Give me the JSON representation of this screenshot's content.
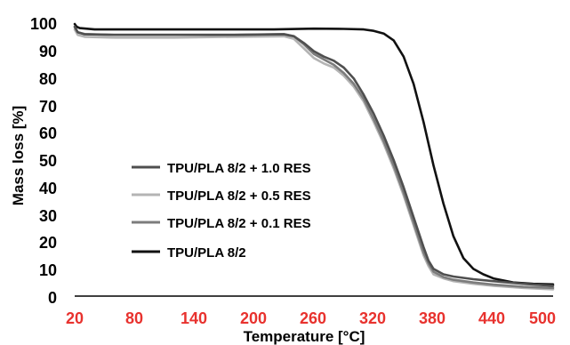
{
  "chart_data": {
    "type": "line",
    "xlabel": "Temperature [°C]",
    "ylabel": "Mass loss [%]",
    "xlim": [
      20,
      500
    ],
    "ylim": [
      0,
      100
    ],
    "x_ticks": [
      "20",
      "80",
      "140",
      "200",
      "260",
      "320",
      "380",
      "440",
      "500"
    ],
    "y_ticks": [
      "0",
      "10",
      "20",
      "30",
      "40",
      "50",
      "60",
      "70",
      "80",
      "90",
      "100"
    ],
    "x_tick_color": "#e8322e",
    "grid": false,
    "legend_position": "lower-left",
    "series": [
      {
        "name": "TPU/PLA 8/2 + 1.0 RES",
        "color": "#4f4f4f",
        "points": [
          [
            20,
            99
          ],
          [
            23,
            97
          ],
          [
            30,
            96.2
          ],
          [
            60,
            96
          ],
          [
            120,
            96
          ],
          [
            180,
            96
          ],
          [
            230,
            96.2
          ],
          [
            240,
            95.5
          ],
          [
            250,
            93
          ],
          [
            260,
            90
          ],
          [
            270,
            88
          ],
          [
            280,
            86.5
          ],
          [
            290,
            84
          ],
          [
            300,
            80
          ],
          [
            310,
            74
          ],
          [
            320,
            67
          ],
          [
            330,
            59
          ],
          [
            340,
            50
          ],
          [
            350,
            40
          ],
          [
            360,
            29
          ],
          [
            370,
            18
          ],
          [
            375,
            13
          ],
          [
            380,
            10
          ],
          [
            390,
            8
          ],
          [
            400,
            7.2
          ],
          [
            420,
            6.2
          ],
          [
            440,
            5.5
          ],
          [
            470,
            4.5
          ],
          [
            500,
            3.8
          ]
        ]
      },
      {
        "name": "TPU/PLA 8/2 + 0.5 RES",
        "color": "#b4b4b4",
        "points": [
          [
            20,
            98
          ],
          [
            23,
            96
          ],
          [
            30,
            95.3
          ],
          [
            60,
            95
          ],
          [
            120,
            95
          ],
          [
            180,
            95.3
          ],
          [
            230,
            95.5
          ],
          [
            240,
            94.5
          ],
          [
            250,
            91
          ],
          [
            260,
            87.5
          ],
          [
            270,
            85.5
          ],
          [
            280,
            84
          ],
          [
            290,
            81
          ],
          [
            300,
            77
          ],
          [
            310,
            71.5
          ],
          [
            320,
            64
          ],
          [
            330,
            56
          ],
          [
            340,
            47
          ],
          [
            350,
            37
          ],
          [
            360,
            26
          ],
          [
            370,
            15
          ],
          [
            375,
            11
          ],
          [
            380,
            8
          ],
          [
            390,
            6.5
          ],
          [
            400,
            5.5
          ],
          [
            420,
            4.5
          ],
          [
            440,
            3.8
          ],
          [
            470,
            3
          ],
          [
            500,
            2.5
          ]
        ]
      },
      {
        "name": "TPU/PLA 8/2 + 0.1 RES",
        "color": "#7c7c7c",
        "points": [
          [
            20,
            99
          ],
          [
            23,
            97
          ],
          [
            30,
            96.3
          ],
          [
            60,
            96
          ],
          [
            120,
            96
          ],
          [
            180,
            96
          ],
          [
            230,
            96.3
          ],
          [
            240,
            95.5
          ],
          [
            250,
            92.5
          ],
          [
            260,
            89
          ],
          [
            270,
            87
          ],
          [
            280,
            85
          ],
          [
            290,
            82
          ],
          [
            300,
            78
          ],
          [
            310,
            72.5
          ],
          [
            320,
            65
          ],
          [
            330,
            57
          ],
          [
            340,
            48
          ],
          [
            350,
            38
          ],
          [
            360,
            27
          ],
          [
            370,
            16
          ],
          [
            375,
            12
          ],
          [
            380,
            9
          ],
          [
            390,
            7
          ],
          [
            400,
            6
          ],
          [
            420,
            5
          ],
          [
            440,
            4.2
          ],
          [
            470,
            3.4
          ],
          [
            500,
            3
          ]
        ]
      },
      {
        "name": "TPU/PLA 8/2",
        "color": "#111111",
        "points": [
          [
            20,
            100
          ],
          [
            22,
            99
          ],
          [
            25,
            98.5
          ],
          [
            40,
            98
          ],
          [
            100,
            98
          ],
          [
            160,
            98
          ],
          [
            220,
            98
          ],
          [
            260,
            98.3
          ],
          [
            290,
            98.2
          ],
          [
            310,
            98
          ],
          [
            320,
            97.5
          ],
          [
            330,
            96.5
          ],
          [
            340,
            94
          ],
          [
            350,
            88
          ],
          [
            360,
            78
          ],
          [
            370,
            64
          ],
          [
            380,
            48
          ],
          [
            390,
            34
          ],
          [
            400,
            22
          ],
          [
            410,
            14
          ],
          [
            420,
            10
          ],
          [
            430,
            8
          ],
          [
            440,
            6.5
          ],
          [
            460,
            5
          ],
          [
            480,
            4.5
          ],
          [
            500,
            4.3
          ]
        ]
      }
    ]
  }
}
